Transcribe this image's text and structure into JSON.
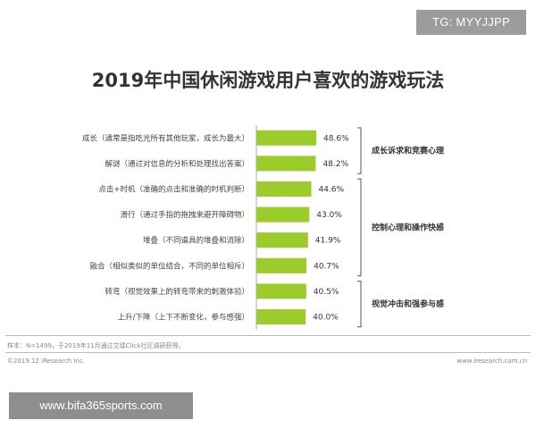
{
  "watermark_top": "TG: MYYJJPP",
  "watermark_bottom": "www.bifa365sports.com",
  "footer": {
    "note": "样本：N=1499，于2019年11月通过艾瑞Click社区调研获得。",
    "copyright": "©2019.12 iResearch Inc.",
    "site": "www.iresearch.com.cn"
  },
  "colors": {
    "bar": "#9ccb2c",
    "axis": "#aaaaaa",
    "bracket": "#555555"
  },
  "chart_data": {
    "type": "bar",
    "orientation": "horizontal",
    "title": "2019年中国休闲游戏用户喜欢的游戏玩法",
    "categories": [
      "成长（通常是指吃光所有其他玩家，成长为最大）",
      "解谜（通过对信息的分析和处理找出答案）",
      "点击+时机（准确的点击和准确的时机判断）",
      "滑行（通过手指的拖拽来避开障碍物）",
      "堆叠（不同道具的堆叠和消除）",
      "融合（相似类似的单位结合，不同的单位相斥）",
      "转弯（视觉效果上的转弯带来的刺激体验）",
      "上升/下降（上下不断变化，参与感强）"
    ],
    "values": [
      48.6,
      48.2,
      44.6,
      43.0,
      41.9,
      40.7,
      40.5,
      40.0
    ],
    "value_labels": [
      "48.6%",
      "48.2%",
      "44.6%",
      "43.0%",
      "41.9%",
      "40.7%",
      "40.5%",
      "40.0%"
    ],
    "unit": "%",
    "xlim": [
      0,
      50
    ],
    "groups": [
      {
        "label": "成长诉求和竞赛心理",
        "start": 0,
        "end": 1
      },
      {
        "label": "控制心理和操作快感",
        "start": 2,
        "end": 5
      },
      {
        "label": "视觉冲击和强参与感",
        "start": 6,
        "end": 7
      }
    ]
  }
}
